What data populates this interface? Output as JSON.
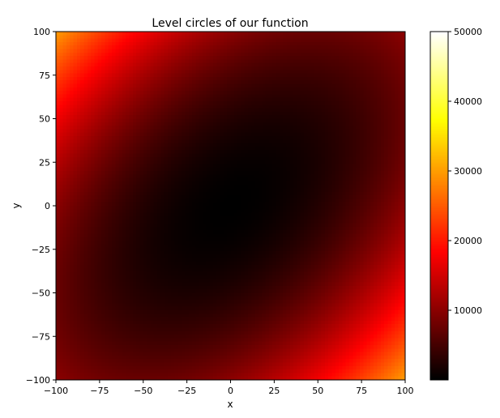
{
  "chart_data": {
    "type": "heatmap",
    "title": "Level circles of our function",
    "xlabel": "x",
    "ylabel": "y",
    "xlim": [
      -100,
      100
    ],
    "ylim": [
      -100,
      100
    ],
    "grid_resolution": 100,
    "x_ticks": [
      -100,
      -75,
      -50,
      -25,
      0,
      25,
      50,
      75,
      100
    ],
    "y_ticks": [
      -100,
      -75,
      -50,
      -25,
      0,
      25,
      50,
      75,
      100
    ],
    "x_tick_labels": [
      "−100",
      "−75",
      "−50",
      "−25",
      "0",
      "25",
      "50",
      "75",
      "100"
    ],
    "y_tick_labels": [
      "−100",
      "−75",
      "−50",
      "−25",
      "0",
      "25",
      "50",
      "75",
      "100"
    ],
    "function": "f(x, y) = x^2 + y^2 - x*y",
    "colormap": "hot",
    "colorbar": {
      "min": 0,
      "max": 50000,
      "ticks": [
        10000,
        20000,
        30000,
        40000,
        50000
      ],
      "tick_labels": [
        "10000",
        "20000",
        "30000",
        "40000",
        "50000"
      ]
    },
    "grid": false
  }
}
